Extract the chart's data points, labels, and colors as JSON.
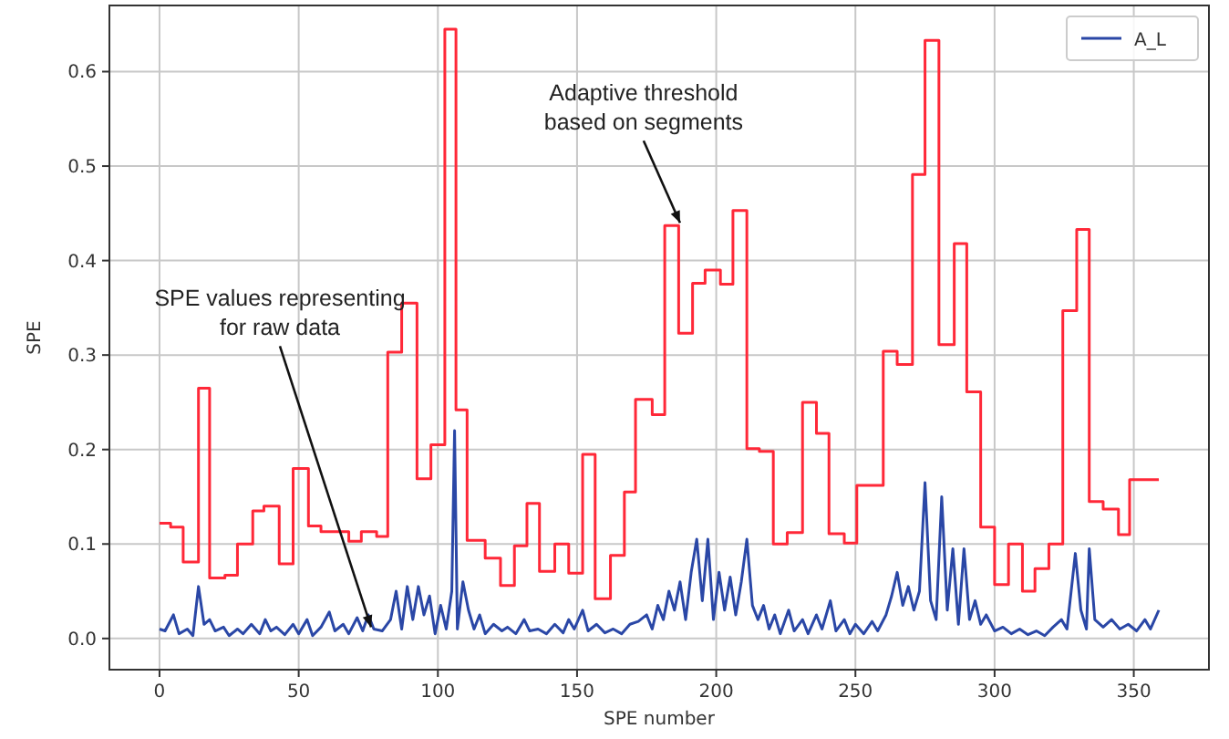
{
  "chart_data": {
    "type": "line",
    "xlabel": "SPE number",
    "ylabel": "SPE",
    "xlim": [
      -18,
      377
    ],
    "ylim": [
      -0.033,
      0.67
    ],
    "xticks": [
      0,
      50,
      100,
      150,
      200,
      250,
      300,
      350
    ],
    "yticks": [
      {
        "value": 0,
        "label": "0.0"
      },
      {
        "value": 0.1,
        "label": "0.1"
      },
      {
        "value": 0.2,
        "label": "0.2"
      },
      {
        "value": 0.3,
        "label": "0.3"
      },
      {
        "value": 0.4,
        "label": "0.4"
      },
      {
        "value": 0.5,
        "label": "0.5"
      },
      {
        "value": 0.6,
        "label": "0.6"
      }
    ],
    "grid": true,
    "legend": "top right",
    "series": [
      {
        "type": "step",
        "color": "#ff2838",
        "x": [
          0,
          4,
          8.5,
          14,
          18,
          23.5,
          28,
          33.5,
          37.5,
          43,
          48,
          53.5,
          58,
          68,
          72.5,
          78,
          82,
          87,
          92.5,
          97.5,
          102.5,
          106.5,
          110.5,
          117,
          122.5,
          127.5,
          132,
          136.5,
          142,
          147,
          152,
          156.5,
          162,
          167,
          171,
          177,
          181.5,
          186.5,
          191.5,
          196,
          201.5,
          206,
          211,
          215.5,
          220.5,
          225.5,
          231,
          236,
          240.5,
          246,
          250.5,
          260,
          265,
          270.5,
          275,
          280,
          285.5,
          290,
          295,
          300,
          305,
          310,
          314.5,
          319.5,
          324.5,
          329.5,
          334,
          339,
          344.5,
          348.5,
          359
        ],
        "values": [
          0.122,
          0.118,
          0.081,
          0.265,
          0.064,
          0.067,
          0.1,
          0.135,
          0.14,
          0.079,
          0.18,
          0.119,
          0.113,
          0.103,
          0.113,
          0.108,
          0.303,
          0.355,
          0.169,
          0.205,
          0.645,
          0.242,
          0.104,
          0.085,
          0.056,
          0.098,
          0.143,
          0.071,
          0.1,
          0.069,
          0.195,
          0.042,
          0.088,
          0.155,
          0.253,
          0.237,
          0.437,
          0.323,
          0.376,
          0.39,
          0.375,
          0.453,
          0.201,
          0.198,
          0.1,
          0.112,
          0.25,
          0.217,
          0.111,
          0.101,
          0.162,
          0.304,
          0.29,
          0.491,
          0.633,
          0.311,
          0.418,
          0.261,
          0.118,
          0.057,
          0.1,
          0.05,
          0.074,
          0.1,
          0.347,
          0.433,
          0.145,
          0.137,
          0.11,
          0.168,
          0.168
        ]
      },
      {
        "name": "A_L",
        "color": "#2a47a6",
        "x": [
          0,
          2,
          5,
          7,
          10,
          12,
          14,
          16,
          18,
          20,
          23,
          25,
          28,
          30,
          33,
          36,
          38,
          40,
          42,
          45,
          48,
          50,
          53,
          55,
          58,
          61,
          63,
          66,
          68,
          71,
          73,
          75,
          77,
          80,
          83,
          85,
          87,
          89,
          91,
          93,
          95,
          97,
          99,
          101,
          103,
          105,
          106,
          107,
          109,
          111,
          113,
          115,
          117,
          120,
          123,
          125,
          128,
          131,
          133,
          136,
          139,
          142,
          145,
          147,
          149,
          152,
          154,
          157,
          160,
          163,
          166,
          169,
          172,
          175,
          177,
          179,
          181,
          183,
          185,
          187,
          189,
          191,
          193,
          195,
          197,
          199,
          201,
          203,
          205,
          207,
          209,
          211,
          213,
          215,
          217,
          219,
          221,
          223,
          226,
          228,
          231,
          233,
          236,
          238,
          241,
          243,
          246,
          248,
          250,
          253,
          256,
          258,
          261,
          263,
          265,
          267,
          269,
          271,
          273,
          275,
          277,
          279,
          281,
          283,
          285,
          287,
          289,
          291,
          293,
          295,
          297,
          300,
          303,
          306,
          309,
          312,
          315,
          318,
          321,
          324,
          326,
          329,
          331,
          333,
          334,
          336,
          339,
          342,
          345,
          348,
          351,
          354,
          356,
          359
        ],
        "values": [
          0.01,
          0.008,
          0.025,
          0.005,
          0.01,
          0.003,
          0.055,
          0.015,
          0.02,
          0.008,
          0.012,
          0.003,
          0.01,
          0.005,
          0.015,
          0.005,
          0.02,
          0.008,
          0.012,
          0.004,
          0.015,
          0.005,
          0.02,
          0.003,
          0.012,
          0.028,
          0.008,
          0.015,
          0.005,
          0.022,
          0.008,
          0.025,
          0.01,
          0.008,
          0.02,
          0.05,
          0.01,
          0.055,
          0.02,
          0.055,
          0.025,
          0.045,
          0.005,
          0.035,
          0.01,
          0.05,
          0.22,
          0.01,
          0.06,
          0.03,
          0.01,
          0.025,
          0.005,
          0.015,
          0.008,
          0.012,
          0.005,
          0.02,
          0.008,
          0.01,
          0.005,
          0.015,
          0.006,
          0.02,
          0.01,
          0.03,
          0.008,
          0.015,
          0.006,
          0.01,
          0.005,
          0.015,
          0.018,
          0.025,
          0.01,
          0.035,
          0.02,
          0.05,
          0.03,
          0.06,
          0.02,
          0.07,
          0.105,
          0.04,
          0.105,
          0.02,
          0.07,
          0.03,
          0.065,
          0.025,
          0.06,
          0.105,
          0.035,
          0.02,
          0.035,
          0.01,
          0.025,
          0.005,
          0.03,
          0.008,
          0.02,
          0.005,
          0.025,
          0.01,
          0.04,
          0.008,
          0.02,
          0.005,
          0.015,
          0.005,
          0.018,
          0.008,
          0.025,
          0.045,
          0.07,
          0.035,
          0.055,
          0.03,
          0.05,
          0.165,
          0.04,
          0.02,
          0.15,
          0.03,
          0.095,
          0.015,
          0.095,
          0.02,
          0.04,
          0.015,
          0.025,
          0.008,
          0.012,
          0.005,
          0.01,
          0.004,
          0.008,
          0.003,
          0.012,
          0.02,
          0.01,
          0.09,
          0.03,
          0.01,
          0.095,
          0.02,
          0.012,
          0.02,
          0.01,
          0.015,
          0.008,
          0.02,
          0.01,
          0.03
        ]
      }
    ],
    "annotations": [
      {
        "text": "Adaptive threshold\nbased on segments",
        "x": 187,
        "y": 0.44
      },
      {
        "text": "SPE values representing\nfor raw data",
        "x": 76,
        "y": 0.012
      }
    ]
  }
}
